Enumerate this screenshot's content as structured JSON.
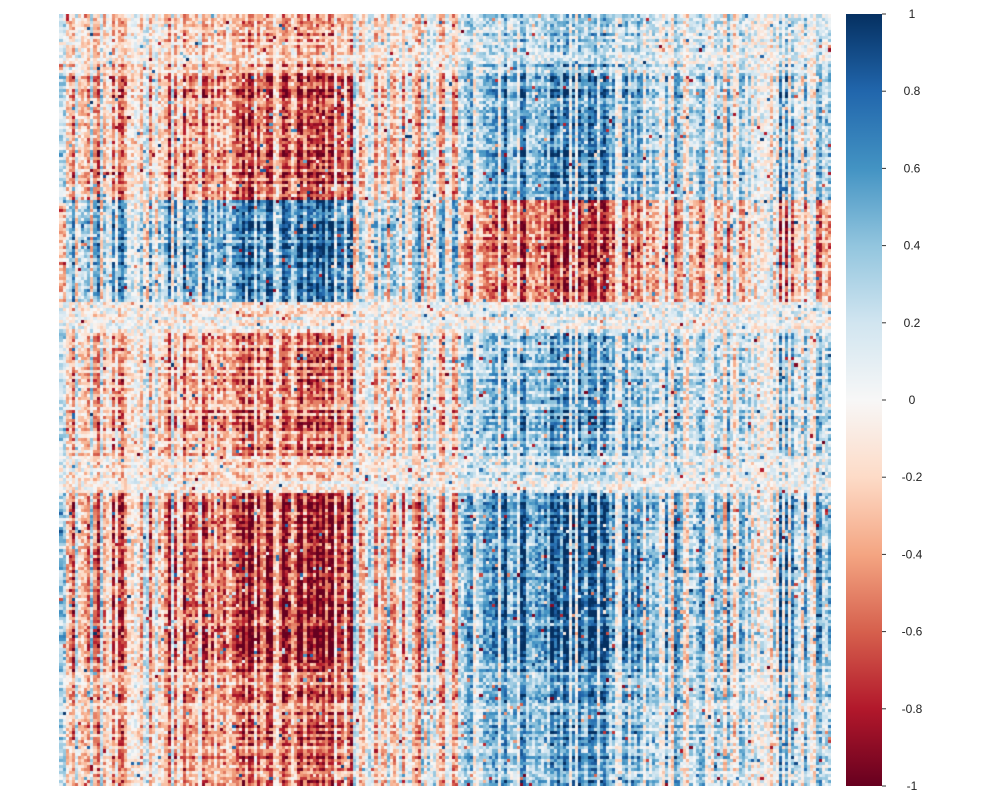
{
  "chart_data": {
    "type": "heatmap",
    "title": "",
    "xlabel": "",
    "ylabel": "",
    "matrix_size": 250,
    "value_range": [
      -1,
      1
    ],
    "symmetric": true,
    "colormap": "RdBu",
    "colormap_stops": [
      {
        "value": -1.0,
        "color": "#67001f"
      },
      {
        "value": -0.8,
        "color": "#b2182b"
      },
      {
        "value": -0.6,
        "color": "#d6604d"
      },
      {
        "value": -0.4,
        "color": "#f4a582"
      },
      {
        "value": -0.2,
        "color": "#fddbc7"
      },
      {
        "value": 0.0,
        "color": "#f7f7f7"
      },
      {
        "value": 0.2,
        "color": "#d1e5f0"
      },
      {
        "value": 0.4,
        "color": "#92c5de"
      },
      {
        "value": 0.6,
        "color": "#4393c3"
      },
      {
        "value": 0.8,
        "color": "#2166ac"
      },
      {
        "value": 1.0,
        "color": "#053061"
      }
    ],
    "block_structure": {
      "variable_groups": [
        {
          "from": 0,
          "to": 0.12,
          "loading": 0.2
        },
        {
          "from": 0.12,
          "to": 0.22,
          "loading": 0.35
        },
        {
          "from": 0.22,
          "to": 0.38,
          "loading": 0.6
        },
        {
          "from": 0.38,
          "to": 0.52,
          "loading": 0.1
        },
        {
          "from": 0.52,
          "to": 0.72,
          "loading": -0.5
        },
        {
          "from": 0.72,
          "to": 1.0,
          "loading": -0.25
        }
      ],
      "observation_groups": [
        {
          "from": 0,
          "to": 0.08,
          "score": 0.4
        },
        {
          "from": 0.08,
          "to": 0.24,
          "score": 0.7
        },
        {
          "from": 0.24,
          "to": 0.37,
          "score": -0.8
        },
        {
          "from": 0.37,
          "to": 0.41,
          "score": 0.1
        },
        {
          "from": 0.41,
          "to": 0.57,
          "score": 0.6
        },
        {
          "from": 0.57,
          "to": 0.62,
          "score": 0.2
        },
        {
          "from": 0.62,
          "to": 0.85,
          "score": 0.85
        },
        {
          "from": 0.85,
          "to": 1.0,
          "score": 0.6
        }
      ]
    },
    "colorbar": {
      "ticks": [
        1,
        0.8,
        0.6,
        0.4,
        0.2,
        0,
        -0.2,
        -0.4,
        -0.6,
        -0.8,
        -1
      ],
      "tick_labels": [
        "1",
        "0.8",
        "0.6",
        "0.4",
        "0.2",
        "0",
        "-0.2",
        "-0.4",
        "-0.6",
        "-0.8",
        "-1"
      ]
    }
  }
}
